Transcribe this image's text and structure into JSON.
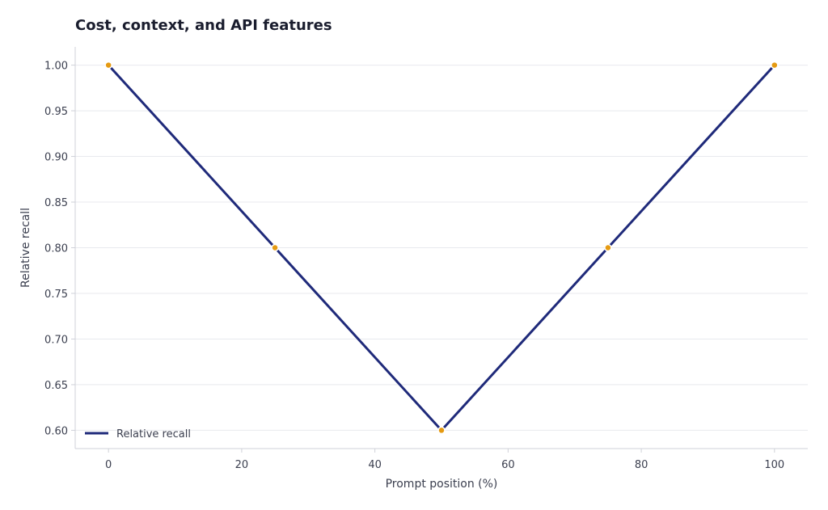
{
  "chart_data": {
    "type": "line",
    "title": "Cost, context, and API features",
    "xlabel": "Prompt position (%)",
    "ylabel": "Relative recall",
    "xlim": [
      -5,
      105
    ],
    "ylim": [
      0.58,
      1.02
    ],
    "xticks": [
      0,
      20,
      40,
      60,
      80,
      100
    ],
    "yticks": [
      0.6,
      0.65,
      0.7,
      0.75,
      0.8,
      0.85,
      0.9,
      0.95,
      1.0
    ],
    "grid": "horizontal",
    "legend_position": "bottom-left",
    "colors": {
      "line": "#1f2a7a",
      "marker": "#e59a12",
      "grid": "#e8e9ee",
      "axis": "#cfd1d8"
    },
    "series": [
      {
        "name": "Relative recall",
        "x": [
          0,
          25,
          50,
          75,
          100
        ],
        "y": [
          1.0,
          0.8,
          0.6,
          0.8,
          1.0
        ]
      }
    ]
  }
}
